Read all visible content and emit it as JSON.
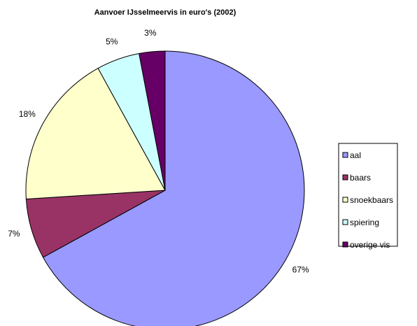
{
  "chart_data": {
    "type": "pie",
    "title": "Aanvoer IJsselmeervis in euro's (2002)",
    "categories": [
      "aal",
      "baars",
      "snoekbaars",
      "spiering",
      "overige vis"
    ],
    "values": [
      67,
      7,
      18,
      5,
      3
    ],
    "value_labels": [
      "67%",
      "7%",
      "18%",
      "5%",
      "3%"
    ],
    "colors": [
      "#9999ff",
      "#993366",
      "#ffffcc",
      "#ccffff",
      "#660066"
    ],
    "legend": "right"
  }
}
